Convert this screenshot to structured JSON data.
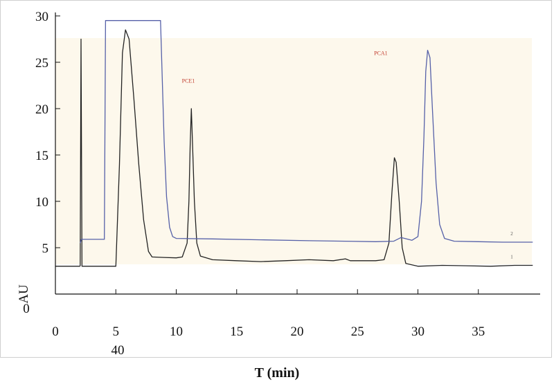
{
  "chart_data": {
    "type": "line",
    "title": "",
    "xlabel": "T (min)",
    "ylabel": "AU",
    "xlim": [
      0,
      40
    ],
    "ylim": [
      0,
      30
    ],
    "x_ticks": [
      "0",
      "5",
      "10",
      "15",
      "20",
      "25",
      "30",
      "35"
    ],
    "x_extra_tick": "40",
    "y_ticks": [
      "0",
      "5",
      "10",
      "15",
      "20",
      "25",
      "30"
    ],
    "grid": false,
    "background": "#fdf8ec",
    "annotations": [
      {
        "text": "PCE1",
        "x": 12.3,
        "y": 22.8
      },
      {
        "text": "PCA1",
        "x": 28.2,
        "y": 25.8
      }
    ],
    "series": [
      {
        "name": "1",
        "color": "#222222",
        "points": [
          [
            0,
            3.0
          ],
          [
            2.0,
            3.0
          ],
          [
            2.05,
            3.05
          ],
          [
            2.12,
            27.5
          ],
          [
            2.2,
            3.0
          ],
          [
            3.0,
            3.0
          ],
          [
            5.0,
            3.0
          ],
          [
            5.3,
            14.0
          ],
          [
            5.55,
            26.0
          ],
          [
            5.8,
            28.5
          ],
          [
            6.1,
            27.5
          ],
          [
            6.5,
            21.0
          ],
          [
            6.9,
            14.0
          ],
          [
            7.3,
            8.0
          ],
          [
            7.7,
            4.6
          ],
          [
            8.0,
            4.0
          ],
          [
            9.0,
            3.95
          ],
          [
            10.0,
            3.9
          ],
          [
            10.5,
            4.0
          ],
          [
            10.9,
            5.5
          ],
          [
            11.05,
            10.0
          ],
          [
            11.15,
            16.0
          ],
          [
            11.25,
            20.0
          ],
          [
            11.35,
            16.0
          ],
          [
            11.5,
            10.0
          ],
          [
            11.7,
            5.5
          ],
          [
            12.0,
            4.1
          ],
          [
            13.0,
            3.7
          ],
          [
            15.0,
            3.6
          ],
          [
            17.0,
            3.5
          ],
          [
            19.0,
            3.6
          ],
          [
            21.0,
            3.7
          ],
          [
            23.0,
            3.6
          ],
          [
            24.0,
            3.8
          ],
          [
            24.4,
            3.6
          ],
          [
            25.0,
            3.6
          ],
          [
            26.5,
            3.6
          ],
          [
            27.2,
            3.7
          ],
          [
            27.6,
            5.5
          ],
          [
            27.85,
            11.0
          ],
          [
            28.05,
            14.7
          ],
          [
            28.2,
            14.2
          ],
          [
            28.45,
            10.0
          ],
          [
            28.7,
            5.0
          ],
          [
            29.0,
            3.3
          ],
          [
            30.0,
            3.0
          ],
          [
            32.0,
            3.1
          ],
          [
            34.0,
            3.05
          ],
          [
            36.0,
            3.0
          ],
          [
            38.0,
            3.1
          ],
          [
            39.5,
            3.1
          ]
        ]
      },
      {
        "name": "2",
        "color": "#5560a8",
        "points": [
          [
            2.05,
            5.5
          ],
          [
            2.15,
            5.9
          ],
          [
            3.5,
            5.9
          ],
          [
            4.05,
            5.9
          ],
          [
            4.15,
            29.5
          ],
          [
            4.25,
            29.5
          ],
          [
            8.7,
            29.5
          ],
          [
            8.8,
            25.0
          ],
          [
            9.0,
            16.5
          ],
          [
            9.2,
            10.5
          ],
          [
            9.45,
            7.2
          ],
          [
            9.7,
            6.2
          ],
          [
            10.0,
            6.0
          ],
          [
            13.0,
            5.95
          ],
          [
            17.0,
            5.85
          ],
          [
            21.0,
            5.75
          ],
          [
            24.0,
            5.7
          ],
          [
            26.5,
            5.65
          ],
          [
            28.0,
            5.7
          ],
          [
            28.6,
            6.1
          ],
          [
            29.5,
            5.8
          ],
          [
            30.0,
            6.2
          ],
          [
            30.3,
            10.0
          ],
          [
            30.5,
            17.0
          ],
          [
            30.65,
            24.0
          ],
          [
            30.8,
            26.3
          ],
          [
            31.0,
            25.5
          ],
          [
            31.2,
            20.0
          ],
          [
            31.5,
            12.0
          ],
          [
            31.8,
            7.5
          ],
          [
            32.2,
            6.0
          ],
          [
            33.0,
            5.7
          ],
          [
            35.0,
            5.65
          ],
          [
            37.0,
            5.6
          ],
          [
            39.5,
            5.6
          ]
        ]
      }
    ]
  }
}
